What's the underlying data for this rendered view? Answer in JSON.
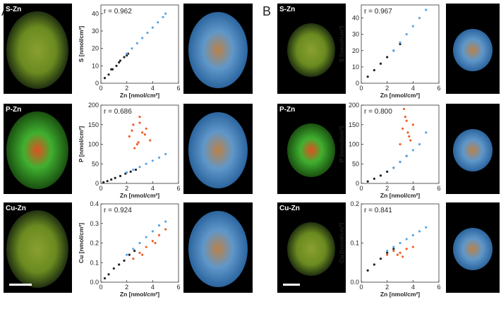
{
  "panels": [
    {
      "letter": "A",
      "labels": [
        "S-Zn",
        "P-Zn",
        "Cu-Zn"
      ]
    },
    {
      "letter": "B",
      "labels": [
        "S-Zn",
        "P-Zn",
        "Cu-Zn"
      ]
    }
  ],
  "chart_data": [
    {
      "type": "scatter",
      "annotation": "r = 0.962",
      "xlabel": "Zn [nmol/cm²]",
      "ylabel": "S [nmol/cm²]",
      "xlim": [
        0,
        6
      ],
      "xticks": [
        0,
        2,
        4,
        6
      ],
      "ylim": [
        0,
        45
      ],
      "yticks": [
        0,
        10,
        20,
        30,
        40
      ],
      "series": [
        {
          "color": "#222222",
          "x": [
            0.3,
            0.6,
            0.9,
            1.2,
            1.5,
            1.8,
            2.1,
            0.8,
            1.4,
            2.0
          ],
          "values": [
            3,
            5,
            8,
            10,
            13,
            15,
            17,
            8,
            12,
            16
          ]
        },
        {
          "color": "#5aa6e6",
          "x": [
            2.0,
            2.4,
            2.8,
            3.2,
            3.6,
            4.0,
            4.4,
            4.8,
            5.0
          ],
          "values": [
            17,
            20,
            23,
            26,
            29,
            32,
            35,
            38,
            40
          ]
        }
      ]
    },
    {
      "type": "scatter",
      "annotation": "r = 0.686",
      "xlabel": "Zn [nmol/cm²]",
      "ylabel": "P [nmol/cm²]",
      "xlim": [
        0,
        6
      ],
      "xticks": [
        0,
        2,
        4,
        6
      ],
      "ylim": [
        0,
        200
      ],
      "yticks": [
        0,
        50,
        100,
        150,
        200
      ],
      "series": [
        {
          "color": "#222222",
          "x": [
            0.2,
            0.5,
            0.8,
            1.1,
            1.5,
            1.9,
            2.3,
            2.7
          ],
          "values": [
            3,
            6,
            10,
            14,
            19,
            25,
            30,
            35
          ]
        },
        {
          "color": "#5aa6e6",
          "x": [
            2.0,
            2.5,
            3.0,
            3.5,
            4.0,
            4.5,
            5.0
          ],
          "values": [
            28,
            35,
            42,
            50,
            58,
            66,
            75
          ]
        },
        {
          "color": "#f0602a",
          "x": [
            2.2,
            2.5,
            2.8,
            3.0,
            3.2,
            3.5,
            3.8,
            2.6,
            3.0,
            3.4,
            2.4,
            2.9
          ],
          "values": [
            120,
            150,
            100,
            170,
            130,
            140,
            110,
            90,
            155,
            125,
            135,
            105
          ]
        }
      ]
    },
    {
      "type": "scatter",
      "annotation": "r = 0.924",
      "xlabel": "Zn [nmol/cm²]",
      "ylabel": "Cu [nmol/cm²]",
      "xlim": [
        0,
        6
      ],
      "xticks": [
        0,
        2,
        4,
        6
      ],
      "ylim": [
        0,
        0.4
      ],
      "yticks": [
        {
          "value": 0,
          "label": "0.0"
        },
        0.1,
        0.2,
        0.3,
        0.4
      ],
      "series": [
        {
          "color": "#222222",
          "x": [
            0.3,
            0.6,
            1.0,
            1.4,
            1.8,
            2.2,
            2.6
          ],
          "values": [
            0.02,
            0.04,
            0.07,
            0.09,
            0.11,
            0.14,
            0.16
          ]
        },
        {
          "color": "#5aa6e6",
          "x": [
            2,
            2.5,
            3,
            3.5,
            4,
            4.5,
            5
          ],
          "values": [
            0.14,
            0.17,
            0.2,
            0.23,
            0.26,
            0.29,
            0.31
          ]
        },
        {
          "color": "#f0602a",
          "x": [
            2.5,
            3,
            3.5,
            4,
            4.5,
            5,
            3.2,
            4.2
          ],
          "values": [
            0.12,
            0.15,
            0.18,
            0.21,
            0.24,
            0.27,
            0.14,
            0.2
          ]
        }
      ]
    },
    {
      "type": "scatter",
      "annotation": "r = 0.967",
      "xlabel": "Zn [nmol/cm²]",
      "ylabel": "S [nmol/cm²]",
      "xlim": [
        0,
        6
      ],
      "xticks": [
        0,
        2,
        4,
        6
      ],
      "ylim": [
        0,
        48
      ],
      "yticks": [
        0,
        10,
        20,
        30,
        40
      ],
      "series": [
        {
          "color": "#222222",
          "x": [
            0.5,
            1,
            1.5,
            2,
            2.5,
            3
          ],
          "values": [
            4,
            8,
            12,
            16,
            20,
            24
          ]
        },
        {
          "color": "#5aa6e6",
          "x": [
            2.5,
            3,
            3.5,
            4,
            4.5,
            5
          ],
          "values": [
            20,
            25,
            30,
            35,
            40,
            45
          ]
        }
      ]
    },
    {
      "type": "scatter",
      "annotation": "r = 0.800",
      "xlabel": "Zn [nmol/cm²]",
      "ylabel": "P [nmol/cm²]",
      "xlim": [
        0,
        6
      ],
      "xticks": [
        0,
        2,
        4,
        6
      ],
      "ylim": [
        0,
        200
      ],
      "yticks": [
        0,
        50,
        100,
        150,
        200
      ],
      "series": [
        {
          "color": "#222222",
          "x": [
            0.5,
            1,
            1.5,
            2,
            2.5,
            3,
            3.5
          ],
          "values": [
            5,
            12,
            20,
            30,
            40,
            55,
            70
          ]
        },
        {
          "color": "#5aa6e6",
          "x": [
            2.5,
            3,
            3.5,
            4,
            4.5,
            5
          ],
          "values": [
            40,
            55,
            70,
            85,
            100,
            130
          ]
        },
        {
          "color": "#f0602a",
          "x": [
            3,
            3.2,
            3.4,
            3.6,
            3.8,
            4,
            3.3,
            3.7,
            3.5
          ],
          "values": [
            100,
            140,
            170,
            130,
            110,
            150,
            190,
            120,
            160
          ]
        }
      ]
    },
    {
      "type": "scatter",
      "annotation": "r = 0.841",
      "xlabel": "Zn [nmol/cm²]",
      "ylabel": "Cu [nmol/cm²]",
      "xlim": [
        0,
        6
      ],
      "xticks": [
        0,
        2,
        4,
        6
      ],
      "ylim": [
        0,
        0.2
      ],
      "yticks": [
        {
          "value": 0,
          "label": "0.0"
        },
        0.1,
        0.2
      ],
      "series": [
        {
          "color": "#222222",
          "x": [
            0.5,
            1,
            1.5,
            2,
            2.5
          ],
          "values": [
            0.03,
            0.045,
            0.06,
            0.075,
            0.085
          ]
        },
        {
          "color": "#5aa6e6",
          "x": [
            2,
            2.5,
            3,
            3.5,
            4,
            4.5,
            5
          ],
          "values": [
            0.08,
            0.09,
            0.1,
            0.11,
            0.12,
            0.13,
            0.14
          ]
        },
        {
          "color": "#f0602a",
          "x": [
            2,
            2.5,
            3,
            3.5,
            4,
            2.8,
            3.2
          ],
          "values": [
            0.07,
            0.08,
            0.075,
            0.085,
            0.09,
            0.07,
            0.065
          ]
        }
      ]
    }
  ]
}
